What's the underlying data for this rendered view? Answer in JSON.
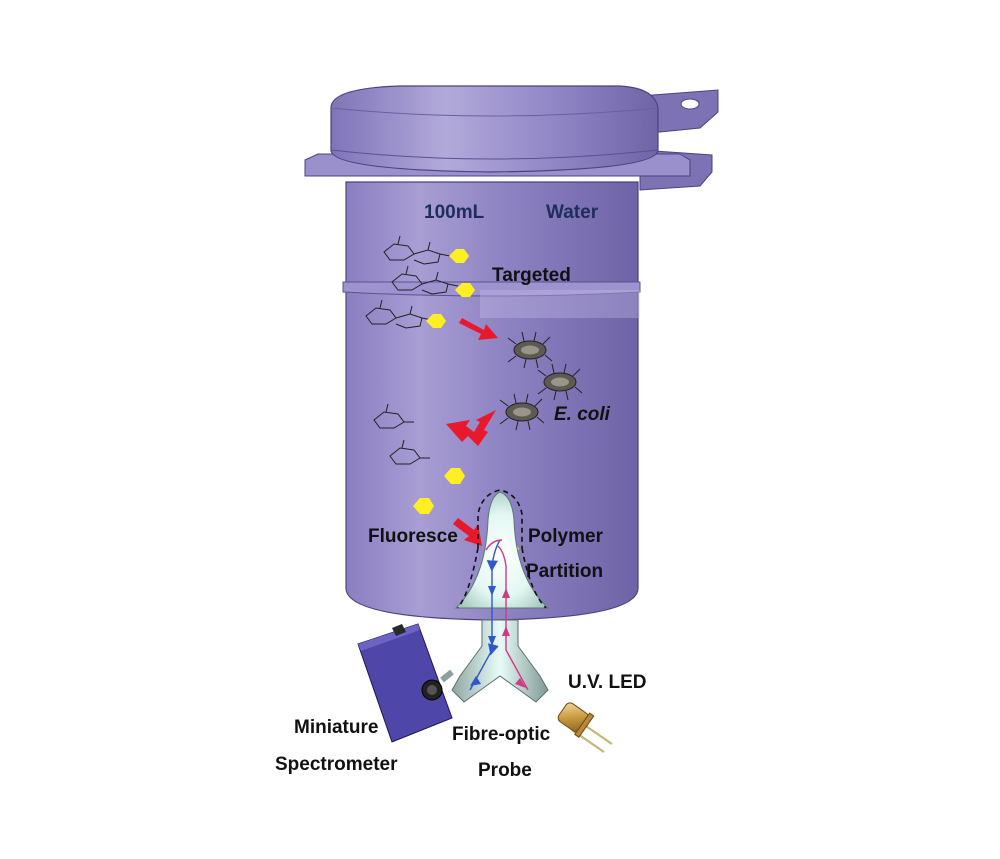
{
  "labels": {
    "volume": "100mL",
    "water": "Water",
    "targeted": "Targeted",
    "ecoli": "E. coli",
    "fluoresce": "Fluoresce",
    "polymer": "Polymer",
    "partition": "Partition",
    "uv_led": "U.V. LED",
    "miniature": "Miniature",
    "spectrometer": "Spectrometer",
    "fibre_optic": "Fibre-optic",
    "probe": "Probe"
  },
  "colors": {
    "container": "#8b7fc0",
    "container_light": "#cfc6ea",
    "fluorophore": "#ffee22",
    "arrow": "#e8192c",
    "probe_glow": "#d8f4ee",
    "light_out": "#2f58c8",
    "light_in": "#d03a84"
  }
}
